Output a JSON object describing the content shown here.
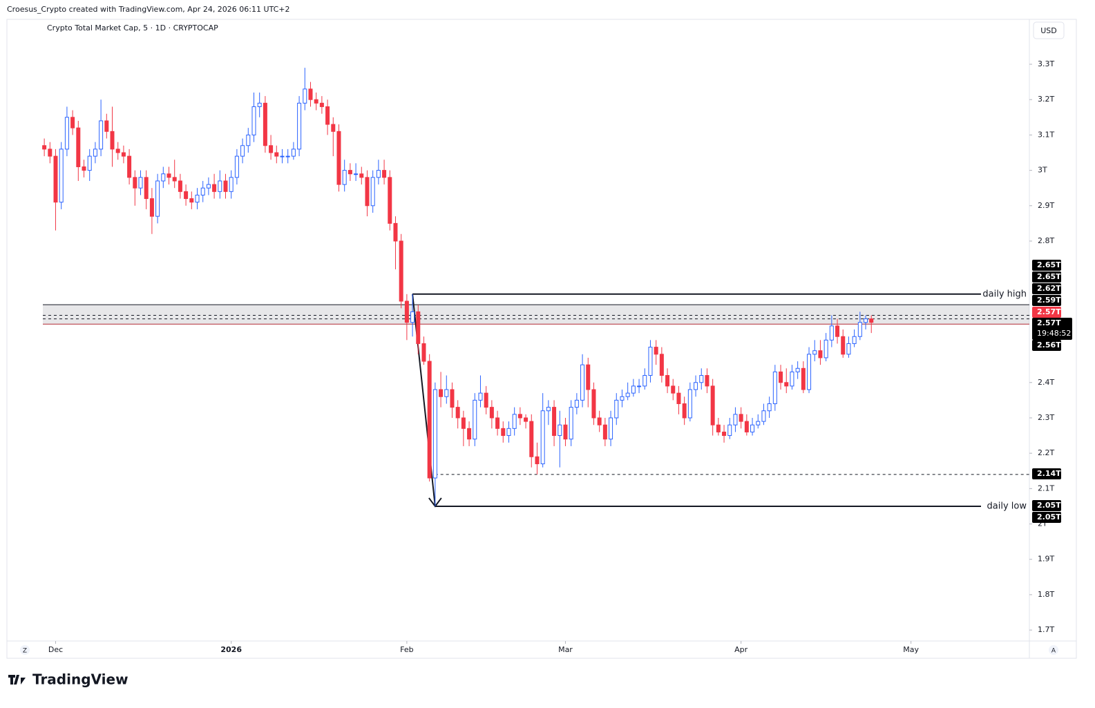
{
  "header": "Croesus_Crypto created with TradingView.com, Apr 24, 2026 06:11 UTC+2",
  "branding": "TradingView",
  "chart_data": {
    "type": "candlestick",
    "title": "Crypto Total Market Cap, 5 · 1D · CRYPTOCAP",
    "currency": "USD",
    "axis_buttons": [
      "Z",
      "A"
    ],
    "up_color": "#2962ff",
    "down_color": "#f23645",
    "xlim": [
      -6.6,
      173.9
    ],
    "xticks": [
      {
        "value": 2,
        "label": "Dec"
      },
      {
        "value": 33,
        "label": "2026"
      },
      {
        "value": 64,
        "label": "Feb"
      },
      {
        "value": 92,
        "label": "Mar"
      },
      {
        "value": 123,
        "label": "Apr"
      },
      {
        "value": 153,
        "label": "May"
      }
    ],
    "ylim": [
      1.669,
      3.427
    ],
    "yticks": [
      {
        "value": 3.3,
        "label": "3.3T"
      },
      {
        "value": 3.2,
        "label": "3.2T"
      },
      {
        "value": 3.1,
        "label": "3.1T"
      },
      {
        "value": 3,
        "label": "3T"
      },
      {
        "value": 2.9,
        "label": "2.9T"
      },
      {
        "value": 2.8,
        "label": "2.8T"
      },
      {
        "value": 2.4,
        "label": "2.4T"
      },
      {
        "value": 2.3,
        "label": "2.3T"
      },
      {
        "value": 2.2,
        "label": "2.2T"
      },
      {
        "value": 2.1,
        "label": "2.1T"
      },
      {
        "value": 2,
        "label": "2T"
      },
      {
        "value": 1.9,
        "label": "1.9T"
      },
      {
        "value": 1.8,
        "label": "1.8T"
      },
      {
        "value": 1.7,
        "label": "1.7T"
      }
    ],
    "open": [
      3.07,
      3.06,
      3.04,
      2.91,
      3.06,
      3.15,
      3.12,
      3.01,
      3.0,
      3.04,
      3.06,
      3.14,
      3.11,
      3.06,
      3.05,
      3.04,
      2.98,
      2.95,
      2.98,
      2.92,
      2.87,
      2.97,
      2.99,
      2.98,
      2.97,
      2.94,
      2.92,
      2.91,
      2.93,
      2.95,
      2.96,
      2.94,
      2.97,
      2.94,
      2.98,
      3.04,
      3.07,
      3.1,
      3.18,
      3.19,
      3.07,
      3.05,
      3.04,
      3.04,
      3.04,
      3.06,
      3.19,
      3.23,
      3.2,
      3.19,
      3.18,
      3.13,
      3.11,
      2.96,
      3.0,
      2.99,
      2.99,
      2.98,
      2.9,
      2.98,
      3.0,
      2.98,
      2.85,
      2.8,
      2.63,
      2.57,
      2.6,
      2.51,
      2.46,
      2.13,
      2.38,
      2.36,
      2.38,
      2.33,
      2.3,
      2.27,
      2.24,
      2.35,
      2.37,
      2.33,
      2.3,
      2.27,
      2.25,
      2.27,
      2.31,
      2.3,
      2.29,
      2.19,
      2.17,
      2.32,
      2.33,
      2.25,
      2.28,
      2.24,
      2.33,
      2.35,
      2.45,
      2.38,
      2.3,
      2.28,
      2.24,
      2.3,
      2.35,
      2.36,
      2.37,
      2.39,
      2.39,
      2.42,
      2.5,
      2.48,
      2.42,
      2.39,
      2.37,
      2.34,
      2.3,
      2.38,
      2.4,
      2.42,
      2.39,
      2.28,
      2.26,
      2.25,
      2.28,
      2.31,
      2.29,
      2.26,
      2.28,
      2.29,
      2.32,
      2.34,
      2.43,
      2.4,
      2.39,
      2.43,
      2.44,
      2.38,
      2.48,
      2.49,
      2.47,
      2.52,
      2.56,
      2.53,
      2.48,
      2.51,
      2.53,
      2.57,
      2.58
    ],
    "high": [
      3.09,
      3.08,
      3.06,
      3.08,
      3.18,
      3.17,
      3.14,
      3.03,
      3.06,
      3.08,
      3.2,
      3.16,
      3.18,
      3.08,
      3.07,
      3.06,
      3.0,
      3.0,
      3.0,
      2.95,
      2.99,
      3.01,
      3.01,
      3.03,
      2.99,
      2.96,
      2.94,
      2.95,
      2.97,
      2.98,
      2.99,
      3.0,
      2.99,
      3.0,
      3.06,
      3.09,
      3.12,
      3.22,
      3.22,
      3.21,
      3.1,
      3.07,
      3.06,
      3.06,
      3.08,
      3.21,
      3.29,
      3.25,
      3.22,
      3.21,
      3.2,
      3.15,
      3.13,
      3.03,
      3.02,
      3.02,
      3.01,
      3.0,
      3.0,
      3.03,
      3.03,
      3.0,
      2.87,
      2.82,
      2.65,
      2.65,
      2.62,
      2.53,
      2.48,
      2.4,
      2.43,
      2.42,
      2.4,
      2.35,
      2.32,
      2.29,
      2.37,
      2.42,
      2.39,
      2.35,
      2.32,
      2.29,
      2.29,
      2.33,
      2.33,
      2.31,
      2.31,
      2.23,
      2.37,
      2.35,
      2.35,
      2.32,
      2.3,
      2.35,
      2.37,
      2.48,
      2.47,
      2.4,
      2.32,
      2.3,
      2.32,
      2.37,
      2.38,
      2.4,
      2.41,
      2.41,
      2.44,
      2.52,
      2.52,
      2.5,
      2.44,
      2.41,
      2.39,
      2.36,
      2.4,
      2.42,
      2.44,
      2.44,
      2.41,
      2.3,
      2.28,
      2.3,
      2.33,
      2.33,
      2.31,
      2.3,
      2.31,
      2.34,
      2.36,
      2.45,
      2.45,
      2.44,
      2.45,
      2.46,
      2.46,
      2.5,
      2.52,
      2.52,
      2.54,
      2.59,
      2.58,
      2.55,
      2.53,
      2.55,
      2.6,
      2.59,
      2.59
    ],
    "low": [
      3.04,
      3.02,
      2.83,
      2.89,
      3.04,
      3.1,
      2.97,
      2.98,
      2.97,
      3.02,
      3.04,
      3.09,
      3.01,
      3.03,
      3.02,
      2.96,
      2.9,
      2.93,
      2.89,
      2.82,
      2.85,
      2.95,
      2.96,
      2.95,
      2.92,
      2.9,
      2.89,
      2.89,
      2.91,
      2.93,
      2.92,
      2.92,
      2.92,
      2.92,
      2.96,
      3.02,
      3.05,
      3.08,
      3.15,
      3.05,
      3.03,
      3.02,
      3.02,
      3.02,
      3.03,
      3.04,
      3.17,
      3.18,
      3.17,
      3.16,
      3.1,
      3.04,
      2.94,
      2.94,
      2.97,
      2.97,
      2.96,
      2.87,
      2.88,
      2.96,
      2.96,
      2.83,
      2.72,
      2.61,
      2.52,
      2.53,
      2.48,
      2.45,
      2.12,
      2.05,
      2.33,
      2.34,
      2.3,
      2.27,
      2.22,
      2.22,
      2.22,
      2.33,
      2.31,
      2.27,
      2.25,
      2.23,
      2.23,
      2.25,
      2.28,
      2.27,
      2.16,
      2.14,
      2.16,
      2.28,
      2.22,
      2.16,
      2.22,
      2.22,
      2.31,
      2.33,
      2.33,
      2.28,
      2.26,
      2.22,
      2.22,
      2.28,
      2.33,
      2.35,
      2.36,
      2.37,
      2.38,
      2.4,
      2.45,
      2.4,
      2.37,
      2.35,
      2.31,
      2.28,
      2.29,
      2.36,
      2.38,
      2.37,
      2.25,
      2.25,
      2.23,
      2.24,
      2.26,
      2.27,
      2.25,
      2.25,
      2.27,
      2.28,
      2.3,
      2.32,
      2.38,
      2.37,
      2.38,
      2.41,
      2.37,
      2.37,
      2.46,
      2.45,
      2.46,
      2.5,
      2.51,
      2.47,
      2.47,
      2.5,
      2.52,
      2.55,
      2.54
    ],
    "close": [
      3.06,
      3.04,
      2.91,
      3.06,
      3.15,
      3.12,
      3.01,
      3.0,
      3.04,
      3.06,
      3.14,
      3.11,
      3.06,
      3.05,
      3.04,
      2.98,
      2.95,
      2.98,
      2.92,
      2.87,
      2.97,
      2.99,
      2.98,
      2.97,
      2.94,
      2.92,
      2.91,
      2.93,
      2.95,
      2.96,
      2.94,
      2.97,
      2.94,
      2.98,
      3.04,
      3.07,
      3.1,
      3.18,
      3.19,
      3.07,
      3.05,
      3.04,
      3.04,
      3.04,
      3.06,
      3.19,
      3.23,
      3.2,
      3.19,
      3.18,
      3.13,
      3.11,
      2.96,
      3.0,
      2.99,
      2.99,
      2.98,
      2.9,
      2.98,
      3.0,
      2.98,
      2.85,
      2.8,
      2.63,
      2.57,
      2.6,
      2.51,
      2.46,
      2.13,
      2.38,
      2.36,
      2.38,
      2.33,
      2.3,
      2.27,
      2.24,
      2.35,
      2.37,
      2.33,
      2.3,
      2.27,
      2.25,
      2.27,
      2.31,
      2.3,
      2.29,
      2.19,
      2.17,
      2.32,
      2.33,
      2.25,
      2.28,
      2.24,
      2.33,
      2.35,
      2.45,
      2.38,
      2.3,
      2.28,
      2.24,
      2.3,
      2.35,
      2.36,
      2.37,
      2.39,
      2.39,
      2.42,
      2.5,
      2.48,
      2.42,
      2.39,
      2.37,
      2.34,
      2.3,
      2.38,
      2.4,
      2.42,
      2.39,
      2.28,
      2.26,
      2.25,
      2.28,
      2.31,
      2.29,
      2.26,
      2.28,
      2.29,
      2.32,
      2.34,
      2.43,
      2.4,
      2.39,
      2.43,
      2.44,
      2.38,
      2.48,
      2.49,
      2.47,
      2.52,
      2.56,
      2.53,
      2.48,
      2.51,
      2.53,
      2.57,
      2.58,
      2.57
    ],
    "zone": {
      "top": 2.62,
      "bottom": 2.565
    },
    "dashed_levels": [
      2.59,
      2.58,
      2.14
    ],
    "daily_high": {
      "label": "daily high",
      "value": 2.65
    },
    "daily_low": {
      "label": "daily low",
      "value": 2.05
    },
    "price_labels": [
      "2.65T",
      "2.65T",
      "2.62T",
      "2.59T",
      "2.57T",
      "2.57T",
      "2.56T",
      "2.14T",
      "2.05T",
      "2.05T"
    ],
    "countdown": "19:48:52"
  }
}
